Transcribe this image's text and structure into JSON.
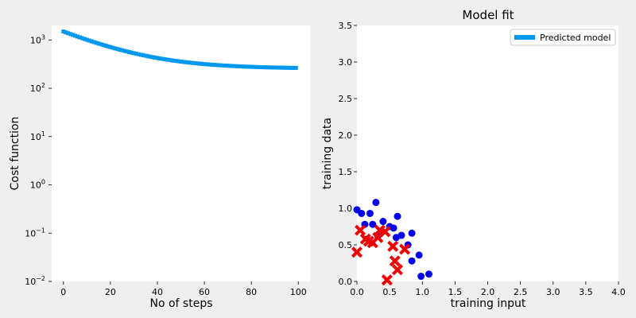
{
  "chart_data": [
    {
      "type": "line",
      "title": "",
      "xlabel": "No of steps",
      "ylabel": "Cost function",
      "xlim": [
        -5,
        105
      ],
      "ylim": [
        0.01,
        2000
      ],
      "yscale": "log",
      "xticks": [
        0,
        20,
        40,
        60,
        80,
        100
      ],
      "yticks": [
        {
          "value": 0.01,
          "base": "10",
          "exp": "−2"
        },
        {
          "value": 0.1,
          "base": "10",
          "exp": "−1"
        },
        {
          "value": 1,
          "base": "10",
          "exp": "0"
        },
        {
          "value": 10,
          "base": "10",
          "exp": "1"
        },
        {
          "value": 100,
          "base": "10",
          "exp": "2"
        },
        {
          "value": 1000,
          "base": "10",
          "exp": "3"
        }
      ],
      "grid": false,
      "series": [
        {
          "color": "#0099ee",
          "start": 1500,
          "end": 255,
          "decay": 0.05,
          "steps": 100
        }
      ]
    },
    {
      "type": "scatter",
      "title": "Model fit",
      "xlabel": "training input",
      "ylabel": "training data",
      "xlim": [
        0,
        4
      ],
      "ylim": [
        0,
        3.5
      ],
      "xticks": [
        "0.0",
        "0.5",
        "1.0",
        "1.5",
        "2.0",
        "2.5",
        "3.0",
        "3.5",
        "4.0"
      ],
      "yticks": [
        "0.0",
        "0.5",
        "1.0",
        "1.5",
        "2.0",
        "2.5",
        "3.0",
        "3.5"
      ],
      "grid": false,
      "legend": {
        "position": "top-right",
        "entries": [
          {
            "label": "Predicted model",
            "color": "#0099ee"
          }
        ]
      },
      "series": [
        {
          "marker": "circle",
          "color": "#0000ee",
          "points": [
            [
              0.0,
              0.98
            ],
            [
              0.07,
              0.93
            ],
            [
              0.12,
              0.78
            ],
            [
              0.2,
              0.93
            ],
            [
              0.24,
              0.78
            ],
            [
              0.29,
              1.08
            ],
            [
              0.32,
              0.62
            ],
            [
              0.4,
              0.82
            ],
            [
              0.5,
              0.75
            ],
            [
              0.56,
              0.73
            ],
            [
              0.6,
              0.6
            ],
            [
              0.62,
              0.89
            ],
            [
              0.68,
              0.63
            ],
            [
              0.78,
              0.5
            ],
            [
              0.84,
              0.66
            ],
            [
              0.84,
              0.28
            ],
            [
              0.95,
              0.36
            ],
            [
              0.98,
              0.07
            ],
            [
              1.1,
              0.1
            ]
          ]
        },
        {
          "marker": "x",
          "color": "#ee0000",
          "points": [
            [
              0.0,
              0.4
            ],
            [
              0.05,
              0.7
            ],
            [
              0.13,
              0.58
            ],
            [
              0.18,
              0.55
            ],
            [
              0.24,
              0.53
            ],
            [
              0.32,
              0.6
            ],
            [
              0.35,
              0.7
            ],
            [
              0.43,
              0.68
            ],
            [
              0.46,
              0.02
            ],
            [
              0.55,
              0.48
            ],
            [
              0.58,
              0.28
            ],
            [
              0.62,
              0.16
            ],
            [
              0.73,
              0.44
            ]
          ]
        }
      ]
    }
  ]
}
